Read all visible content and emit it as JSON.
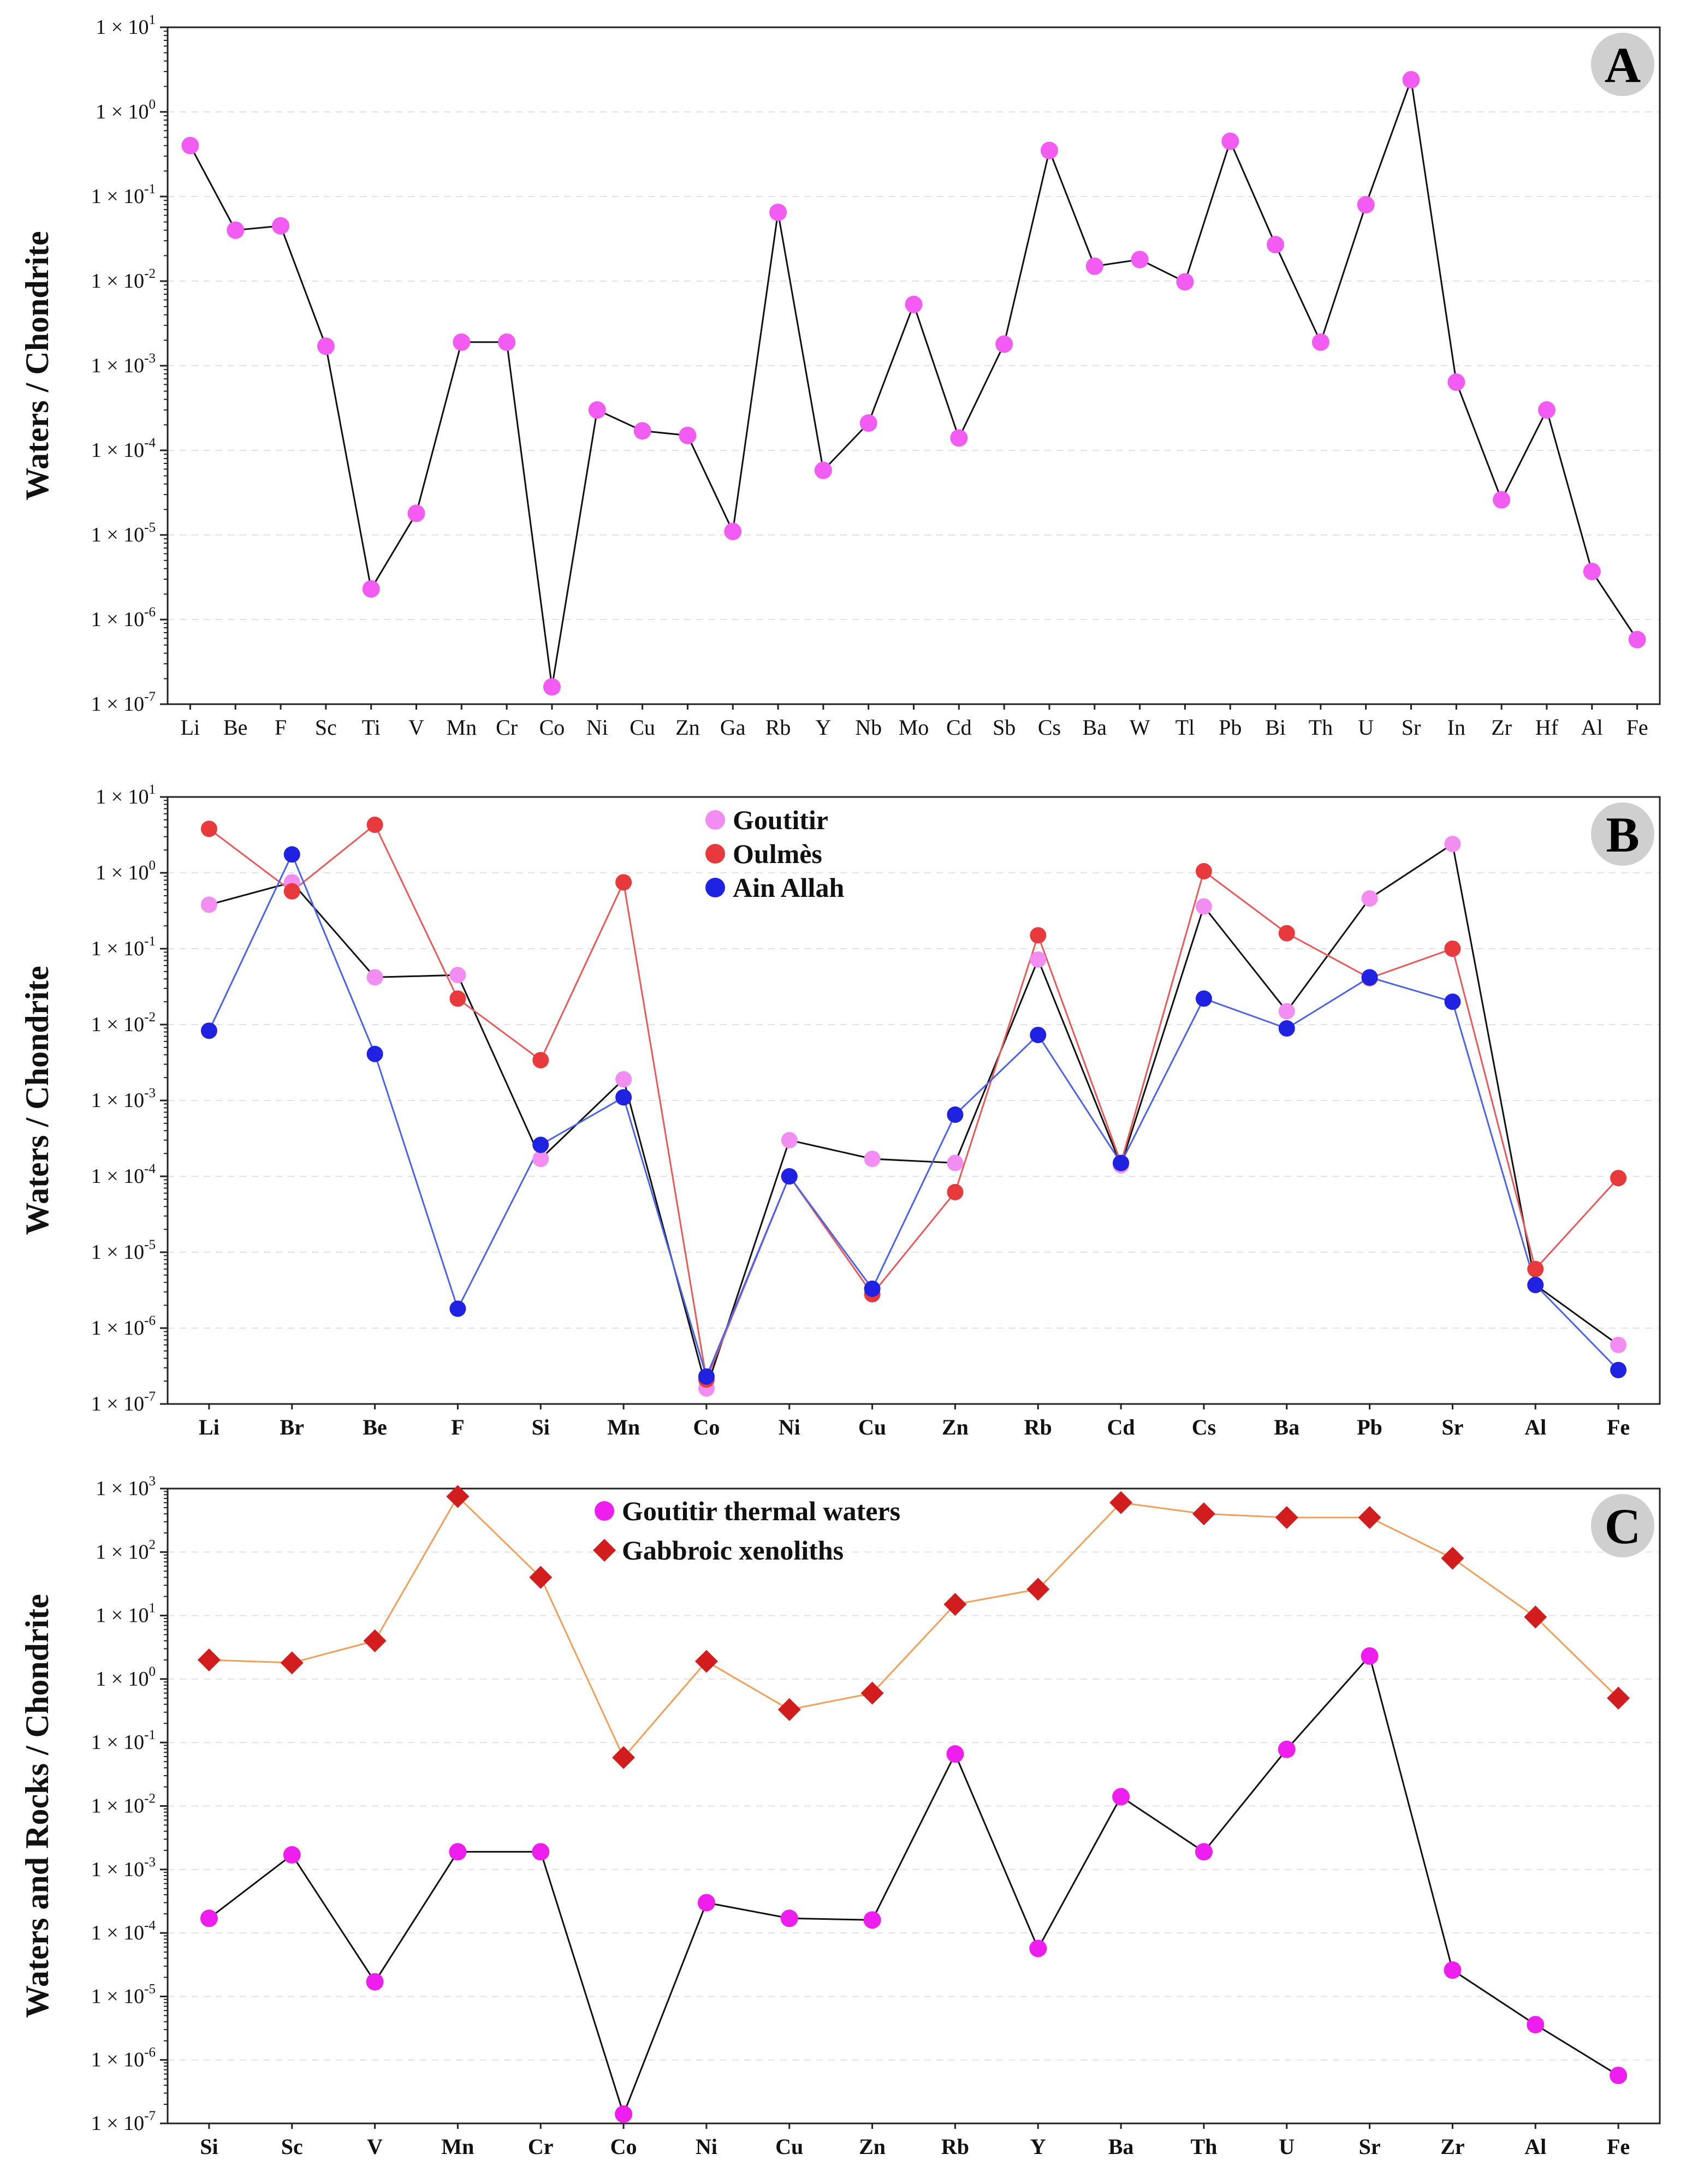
{
  "chart_data": [
    {
      "panel": "A",
      "type": "line",
      "log_y": true,
      "ylim_exp": [
        -7,
        1
      ],
      "ylabel": "Waters /  Chondrite",
      "tick_weight": "normal",
      "categories": [
        "Li",
        "Be",
        "F",
        "Sc",
        "Ti",
        "V",
        "Mn",
        "Cr",
        "Co",
        "Ni",
        "Cu",
        "Zn",
        "Ga",
        "Rb",
        "Y",
        "Nb",
        "Mo",
        "Cd",
        "Sb",
        "Cs",
        "Ba",
        "W",
        "Tl",
        "Pb",
        "Bi",
        "Th",
        "U",
        "Sr",
        "In",
        "Zr",
        "Hf",
        "Al",
        "Fe"
      ],
      "series": [
        {
          "name": "Goutitir",
          "color": "#f25cf2",
          "line_color": "#111111",
          "marker": "circle",
          "values": [
            0.4,
            0.04,
            0.045,
            0.0017,
            2.3e-06,
            1.8e-05,
            0.0019,
            0.0019,
            1.6e-07,
            0.0003,
            0.00017,
            0.00015,
            1.1e-05,
            0.065,
            5.8e-05,
            0.00021,
            0.0053,
            0.00014,
            0.0018,
            0.35,
            0.015,
            0.018,
            0.0098,
            0.45,
            0.027,
            0.0019,
            0.08,
            2.4,
            0.00064,
            2.6e-05,
            0.0003,
            3.7e-06,
            5.8e-07
          ]
        }
      ]
    },
    {
      "panel": "B",
      "type": "line",
      "log_y": true,
      "ylim_exp": [
        -7,
        1
      ],
      "ylabel": "Waters /  Chondrite",
      "tick_weight": "bold",
      "categories": [
        "Li",
        "Br",
        "Be",
        "F",
        "Si",
        "Mn",
        "Co",
        "Ni",
        "Cu",
        "Zn",
        "Rb",
        "Cd",
        "Cs",
        "Ba",
        "Pb",
        "Sr",
        "Al",
        "Fe"
      ],
      "legend": [
        "Goutitir",
        "Oulmès",
        "Ain Allah"
      ],
      "series": [
        {
          "name": "Goutitir",
          "color": "#f28ef2",
          "line_color": "#111111",
          "marker": "circle",
          "values": [
            0.38,
            0.75,
            0.042,
            0.045,
            0.00017,
            0.0019,
            1.6e-07,
            0.0003,
            0.00017,
            0.00015,
            0.072,
            0.00014,
            0.36,
            0.015,
            0.46,
            2.4,
            3.7e-06,
            6e-07
          ]
        },
        {
          "name": "Oulmès",
          "color": "#e8393d",
          "line_color": "#e85a5a",
          "marker": "circle",
          "values": [
            3.8,
            0.57,
            4.3,
            0.022,
            0.0034,
            0.75,
            2.1e-07,
            0.0001,
            2.8e-06,
            6.2e-05,
            0.15,
            0.00015,
            1.05,
            0.16,
            0.041,
            0.1,
            6e-06,
            9.5e-05
          ]
        },
        {
          "name": "Ain Allah",
          "color": "#1f22e0",
          "line_color": "#4b63e8",
          "marker": "circle",
          "values": [
            0.0083,
            1.75,
            0.0041,
            1.8e-06,
            0.00026,
            0.0011,
            2.3e-07,
            0.0001,
            3.3e-06,
            0.00065,
            0.0073,
            0.00015,
            0.022,
            0.0089,
            0.042,
            0.02,
            3.7e-06,
            2.8e-07
          ]
        }
      ]
    },
    {
      "panel": "C",
      "type": "line",
      "log_y": true,
      "ylim_exp": [
        -7,
        3
      ],
      "ylabel": "Waters and Rocks / Chondrite",
      "tick_weight": "bold",
      "categories": [
        "Si",
        "Sc",
        "V",
        "Mn",
        "Cr",
        "Co",
        "Ni",
        "Cu",
        "Zn",
        "Rb",
        "Y",
        "Ba",
        "Th",
        "U",
        "Sr",
        "Zr",
        "Al",
        "Fe"
      ],
      "legend": [
        "Goutitir thermal waters",
        "Gabbroic xenoliths"
      ],
      "series": [
        {
          "name": "Goutitir thermal waters",
          "color": "#ee1fee",
          "line_color": "#111111",
          "marker": "circle",
          "values": [
            0.00017,
            0.0017,
            1.7e-05,
            0.0019,
            0.0019,
            1.4e-07,
            0.0003,
            0.00017,
            0.00016,
            0.066,
            5.7e-05,
            0.014,
            0.0019,
            0.078,
            2.3,
            2.6e-05,
            3.6e-06,
            5.7e-07
          ]
        },
        {
          "name": "Gabbroic xenoliths",
          "color": "#d11d1d",
          "line_color": "#f0a05a",
          "marker": "diamond",
          "values": [
            2.0,
            1.8,
            4.0,
            750,
            40,
            0.058,
            1.9,
            0.33,
            0.6,
            15,
            26,
            600,
            400,
            350,
            350,
            80,
            9.5,
            0.5
          ]
        }
      ]
    }
  ],
  "y_tick_base": "1 × 10",
  "panel_letters": [
    "A",
    "B",
    "C"
  ]
}
